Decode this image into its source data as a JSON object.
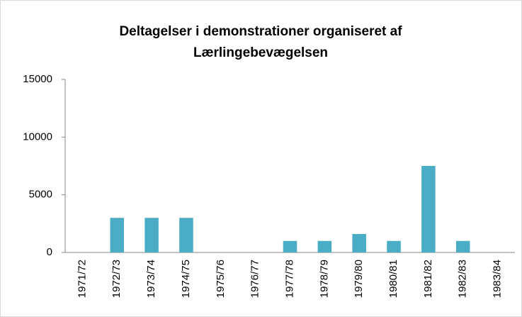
{
  "chart_data": {
    "type": "bar",
    "title": "Deltagelser i demonstrationer organiseret af Lærlingebevægelsen",
    "categories": [
      "1971/72",
      "1972/73",
      "1973/74",
      "1974/75",
      "1975/76",
      "1976/77",
      "1977/78",
      "1978/79",
      "1979/80",
      "1980/81",
      "1981/82",
      "1982/83",
      "1983/84"
    ],
    "values": [
      0,
      3000,
      3000,
      3000,
      0,
      0,
      1000,
      1000,
      1600,
      1000,
      7500,
      1000,
      0
    ],
    "color": "#4bacc6",
    "ylim": [
      0,
      15000
    ],
    "yticks": [
      0,
      5000,
      10000,
      15000
    ],
    "grid": false
  }
}
